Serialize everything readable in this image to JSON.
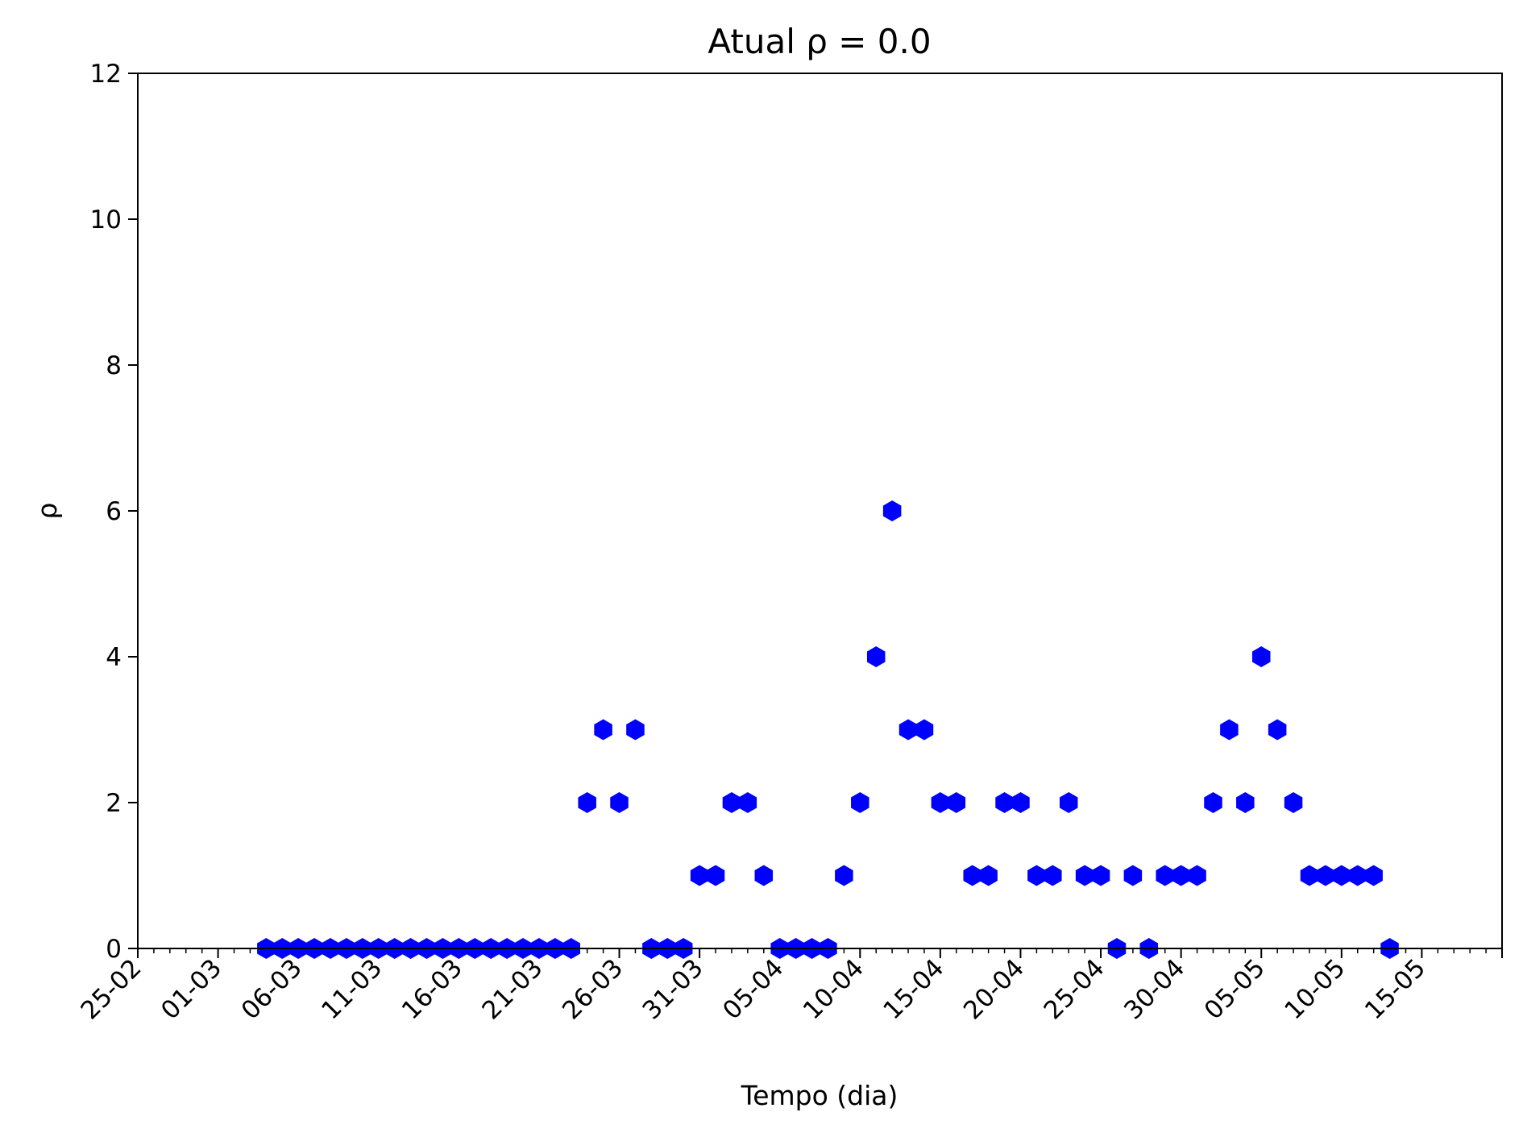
{
  "chart_data": {
    "type": "scatter",
    "title": "Atual ρ = 0.0",
    "xlabel": "Tempo (dia)",
    "ylabel": "ρ",
    "xlim": [
      "2020-02-25",
      "2020-05-20"
    ],
    "ylim": [
      0,
      12
    ],
    "grid": false,
    "marker": "hexagon",
    "color": "#0000ff",
    "year": 2020,
    "x_tick_labels": [
      "25-02",
      "01-03",
      "06-03",
      "11-03",
      "16-03",
      "21-03",
      "26-03",
      "31-03",
      "05-04",
      "10-04",
      "15-04",
      "20-04",
      "25-04",
      "30-04",
      "05-05",
      "10-05",
      "15-05"
    ],
    "y_tick_labels": [
      "0",
      "2",
      "4",
      "6",
      "8",
      "10",
      "12"
    ],
    "series": [
      {
        "x": [
          "2020-03-04",
          "2020-03-05",
          "2020-03-06",
          "2020-03-07",
          "2020-03-08",
          "2020-03-09",
          "2020-03-10",
          "2020-03-11",
          "2020-03-12",
          "2020-03-13",
          "2020-03-14",
          "2020-03-15",
          "2020-03-16",
          "2020-03-17",
          "2020-03-18",
          "2020-03-19",
          "2020-03-20",
          "2020-03-21",
          "2020-03-22",
          "2020-03-23",
          "2020-03-24",
          "2020-03-25",
          "2020-03-26",
          "2020-03-27",
          "2020-03-28",
          "2020-03-29",
          "2020-03-30",
          "2020-03-31",
          "2020-04-01",
          "2020-04-02",
          "2020-04-03",
          "2020-04-04",
          "2020-04-05",
          "2020-04-06",
          "2020-04-07",
          "2020-04-08",
          "2020-04-09",
          "2020-04-10",
          "2020-04-11",
          "2020-04-12",
          "2020-04-13",
          "2020-04-14",
          "2020-04-15",
          "2020-04-16",
          "2020-04-17",
          "2020-04-18",
          "2020-04-19",
          "2020-04-20",
          "2020-04-21",
          "2020-04-22",
          "2020-04-23",
          "2020-04-24",
          "2020-04-25",
          "2020-04-26",
          "2020-04-27",
          "2020-04-28",
          "2020-04-29",
          "2020-04-30",
          "2020-05-01",
          "2020-05-02",
          "2020-05-03",
          "2020-05-04",
          "2020-05-05",
          "2020-05-06",
          "2020-05-07",
          "2020-05-08",
          "2020-05-09",
          "2020-05-10",
          "2020-05-11",
          "2020-05-12",
          "2020-05-13"
        ],
        "y": [
          0,
          0,
          0,
          0,
          0,
          0,
          0,
          0,
          0,
          0,
          0,
          0,
          0,
          0,
          0,
          0,
          0,
          0,
          0,
          0,
          2,
          3,
          2,
          3,
          0,
          0,
          0,
          1,
          1,
          2,
          2,
          1,
          0,
          0,
          0,
          0,
          1,
          2,
          4,
          6,
          3,
          3,
          2,
          2,
          1,
          1,
          2,
          2,
          1,
          1,
          2,
          1,
          1,
          0,
          1,
          0,
          1,
          1,
          1,
          2,
          3,
          2,
          4,
          3,
          2,
          1,
          1,
          1,
          1,
          1,
          0
        ]
      }
    ]
  }
}
